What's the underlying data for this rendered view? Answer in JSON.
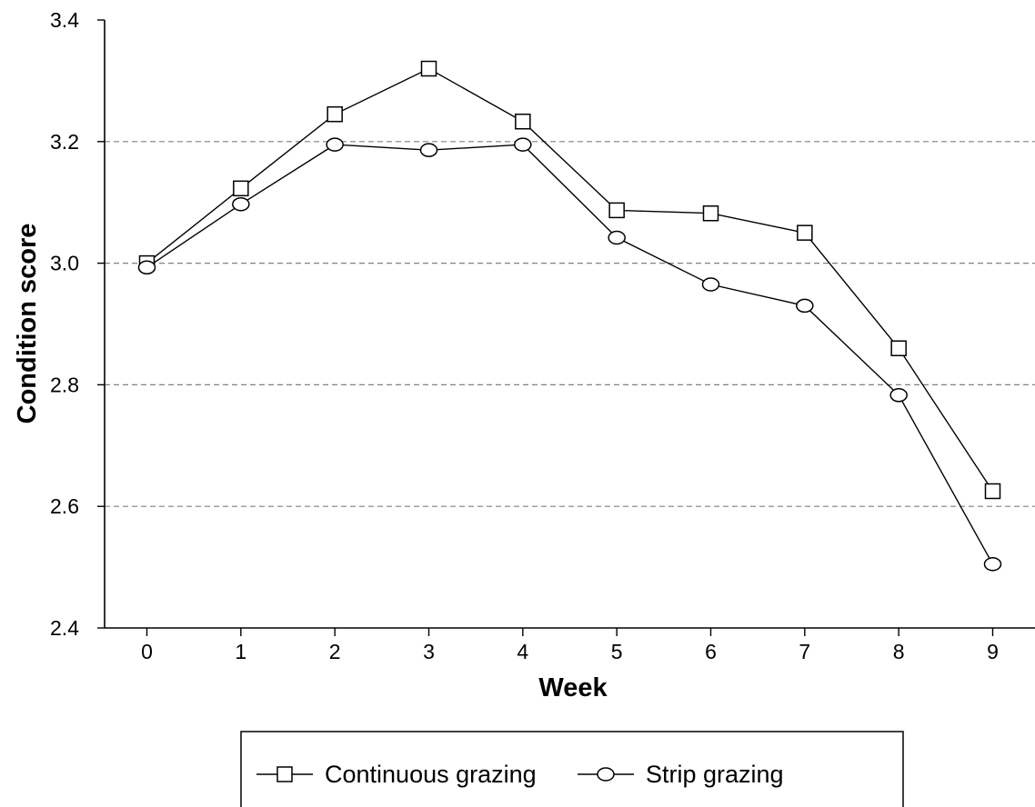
{
  "chart_data": {
    "type": "line",
    "title": "",
    "xlabel": "Week",
    "ylabel": "Condition score",
    "x": [
      0,
      1,
      2,
      3,
      4,
      5,
      6,
      7,
      8,
      9
    ],
    "x_tick_labels": [
      "0",
      "1",
      "2",
      "3",
      "4",
      "5",
      "6",
      "7",
      "8",
      "9"
    ],
    "y_tick_labels": [
      "2.4",
      "2.6",
      "2.8",
      "3.0",
      "3.2",
      "3.4"
    ],
    "ylim": [
      2.4,
      3.4
    ],
    "xlim": [
      -0.45,
      9.45
    ],
    "grid": "horizontal dashed",
    "legend_position": "bottom",
    "series": [
      {
        "name": "Continuous grazing",
        "marker": "square",
        "color": "#000000",
        "values": [
          3.0,
          3.123,
          3.245,
          3.32,
          3.233,
          3.087,
          3.082,
          3.05,
          2.86,
          2.625
        ]
      },
      {
        "name": "Strip grazing",
        "marker": "circle",
        "color": "#000000",
        "values": [
          2.993,
          3.097,
          3.195,
          3.186,
          3.195,
          3.042,
          2.965,
          2.93,
          2.783,
          2.505
        ]
      }
    ]
  }
}
